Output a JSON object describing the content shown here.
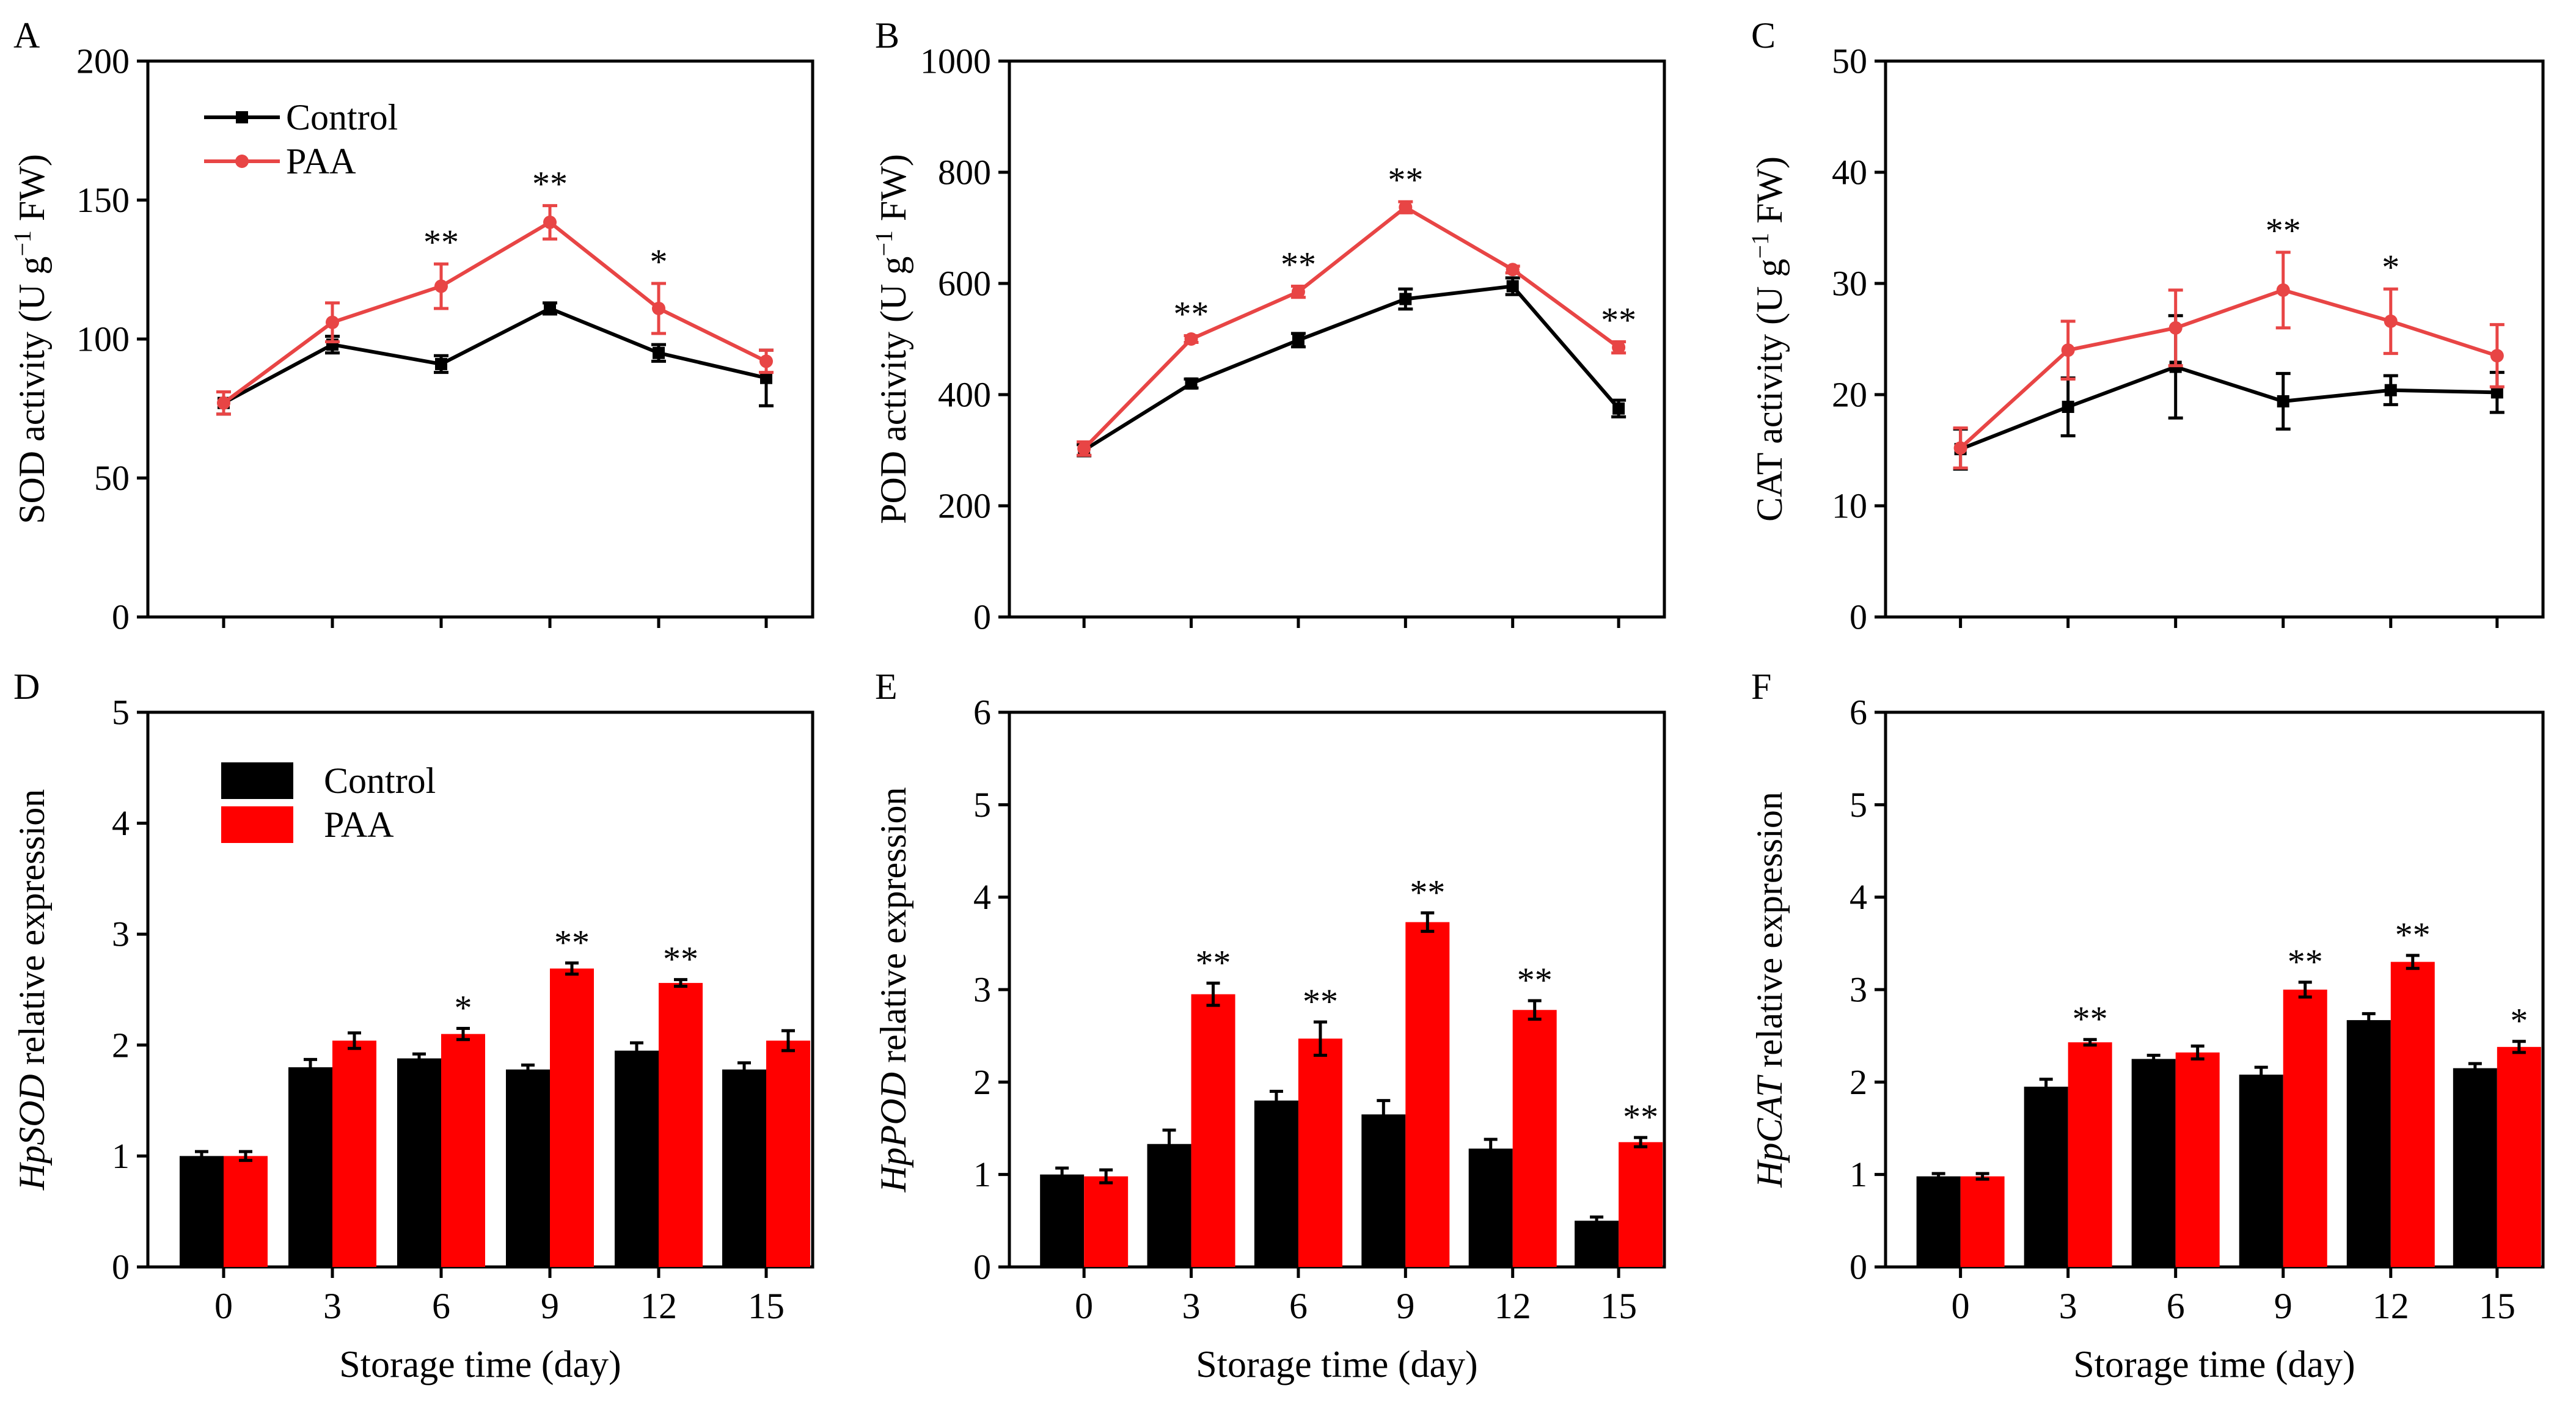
{
  "x_categories": [
    "0",
    "3",
    "6",
    "9",
    "12",
    "15"
  ],
  "xlabel": "Storage time (day)",
  "chart_data": [
    {
      "panel": "A",
      "type": "line",
      "x": [
        0,
        3,
        6,
        9,
        12,
        15
      ],
      "ylabel": "SOD activity (U g",
      "ylabel_sup": "−1",
      "ylabel_after": " FW)",
      "ylabel_italic": "",
      "ylim": [
        0,
        200
      ],
      "yticks": [
        0,
        50,
        100,
        150,
        200
      ],
      "legend": "top-left",
      "series": [
        {
          "name": "Control",
          "color": "#000000",
          "marker": "square",
          "values": [
            77,
            98,
            91,
            111,
            95,
            86
          ],
          "errors": [
            4,
            3,
            3,
            2,
            3,
            10
          ]
        },
        {
          "name": "PAA",
          "color": "#e84545",
          "marker": "circle",
          "values": [
            77,
            106,
            119,
            142,
            111,
            92
          ],
          "errors": [
            4,
            7,
            8,
            6,
            9,
            4
          ]
        }
      ],
      "annotations": [
        {
          "x": 6,
          "text": "**"
        },
        {
          "x": 9,
          "text": "**"
        },
        {
          "x": 12,
          "text": "*"
        }
      ]
    },
    {
      "panel": "B",
      "type": "line",
      "x": [
        0,
        3,
        6,
        9,
        12,
        15
      ],
      "ylabel": "POD activity (U g",
      "ylabel_sup": "−1",
      "ylabel_after": " FW)",
      "ylabel_italic": "",
      "ylim": [
        0,
        1000
      ],
      "yticks": [
        0,
        200,
        400,
        600,
        800,
        1000
      ],
      "series": [
        {
          "name": "Control",
          "color": "#000000",
          "marker": "square",
          "values": [
            300,
            420,
            498,
            572,
            595,
            375
          ],
          "errors": [
            10,
            8,
            12,
            18,
            15,
            15
          ]
        },
        {
          "name": "PAA",
          "color": "#e84545",
          "marker": "circle",
          "values": [
            303,
            500,
            585,
            737,
            625,
            485
          ],
          "errors": [
            12,
            6,
            10,
            10,
            6,
            10
          ]
        }
      ],
      "annotations": [
        {
          "x": 3,
          "text": "**"
        },
        {
          "x": 6,
          "text": "**"
        },
        {
          "x": 9,
          "text": "**"
        },
        {
          "x": 15,
          "text": "**"
        }
      ]
    },
    {
      "panel": "C",
      "type": "line",
      "x": [
        0,
        3,
        6,
        9,
        12,
        15
      ],
      "ylabel": "CAT activity (U g",
      "ylabel_sup": "−1",
      "ylabel_after": " FW)",
      "ylabel_italic": "",
      "ylim": [
        0,
        50
      ],
      "yticks": [
        0,
        10,
        20,
        30,
        40,
        50
      ],
      "series": [
        {
          "name": "Control",
          "color": "#000000",
          "marker": "square",
          "values": [
            15.1,
            18.9,
            22.5,
            19.4,
            20.4,
            20.2
          ],
          "errors": [
            1.8,
            2.6,
            4.6,
            2.5,
            1.3,
            1.8
          ]
        },
        {
          "name": "PAA",
          "color": "#e84545",
          "marker": "circle",
          "values": [
            15.2,
            24.0,
            26.0,
            29.4,
            26.6,
            23.5
          ],
          "errors": [
            1.8,
            2.6,
            3.4,
            3.4,
            2.9,
            2.8
          ]
        }
      ],
      "annotations": [
        {
          "x": 9,
          "text": "**"
        },
        {
          "x": 12,
          "text": "*"
        }
      ]
    },
    {
      "panel": "D",
      "type": "bar",
      "categories": [
        "0",
        "3",
        "6",
        "9",
        "12",
        "15"
      ],
      "ylabel": " relative expression",
      "ylabel_sup": "",
      "ylabel_after": "",
      "ylabel_italic": "HpSOD",
      "ylim": [
        0,
        5
      ],
      "yticks": [
        0,
        1,
        2,
        3,
        4,
        5
      ],
      "legend": "top-left",
      "series": [
        {
          "name": "Control",
          "color": "#000000",
          "values": [
            1.0,
            1.8,
            1.88,
            1.78,
            1.95,
            1.78
          ],
          "errors": [
            0.04,
            0.07,
            0.04,
            0.04,
            0.07,
            0.06
          ]
        },
        {
          "name": "PAA",
          "color": "#ff0000",
          "values": [
            1.0,
            2.04,
            2.1,
            2.69,
            2.56,
            2.04
          ],
          "errors": [
            0.04,
            0.07,
            0.05,
            0.05,
            0.03,
            0.09
          ]
        }
      ],
      "annotations": [
        {
          "index": 2,
          "text": "*"
        },
        {
          "index": 3,
          "text": "**"
        },
        {
          "index": 4,
          "text": "**"
        }
      ]
    },
    {
      "panel": "E",
      "type": "bar",
      "categories": [
        "0",
        "3",
        "6",
        "9",
        "12",
        "15"
      ],
      "ylabel": " relative expression",
      "ylabel_sup": "",
      "ylabel_after": "",
      "ylabel_italic": "HpPOD",
      "ylim": [
        0,
        6
      ],
      "yticks": [
        0,
        1,
        2,
        3,
        4,
        5,
        6
      ],
      "series": [
        {
          "name": "Control",
          "color": "#000000",
          "values": [
            1.0,
            1.33,
            1.8,
            1.65,
            1.28,
            0.5
          ],
          "errors": [
            0.07,
            0.15,
            0.1,
            0.15,
            0.1,
            0.04
          ]
        },
        {
          "name": "PAA",
          "color": "#ff0000",
          "values": [
            0.98,
            2.95,
            2.47,
            3.73,
            2.78,
            1.35
          ],
          "errors": [
            0.07,
            0.12,
            0.18,
            0.1,
            0.1,
            0.05
          ]
        }
      ],
      "annotations": [
        {
          "index": 1,
          "text": "**"
        },
        {
          "index": 2,
          "text": "**"
        },
        {
          "index": 3,
          "text": "**"
        },
        {
          "index": 4,
          "text": "**"
        },
        {
          "index": 5,
          "text": "**"
        }
      ]
    },
    {
      "panel": "F",
      "type": "bar",
      "categories": [
        "0",
        "3",
        "6",
        "9",
        "12",
        "15"
      ],
      "ylabel": " relative expression",
      "ylabel_sup": "",
      "ylabel_after": "",
      "ylabel_italic": "HpCAT",
      "ylim": [
        0,
        6
      ],
      "yticks": [
        0,
        1,
        2,
        3,
        4,
        5,
        6
      ],
      "series": [
        {
          "name": "Control",
          "color": "#000000",
          "values": [
            0.98,
            1.95,
            2.25,
            2.08,
            2.67,
            2.15
          ],
          "errors": [
            0.03,
            0.08,
            0.04,
            0.08,
            0.07,
            0.05
          ]
        },
        {
          "name": "PAA",
          "color": "#ff0000",
          "values": [
            0.98,
            2.43,
            2.32,
            3.0,
            3.3,
            2.38
          ],
          "errors": [
            0.03,
            0.03,
            0.07,
            0.08,
            0.07,
            0.06
          ]
        }
      ],
      "annotations": [
        {
          "index": 1,
          "text": "**"
        },
        {
          "index": 3,
          "text": "**"
        },
        {
          "index": 4,
          "text": "**"
        },
        {
          "index": 5,
          "text": "*"
        }
      ]
    }
  ]
}
